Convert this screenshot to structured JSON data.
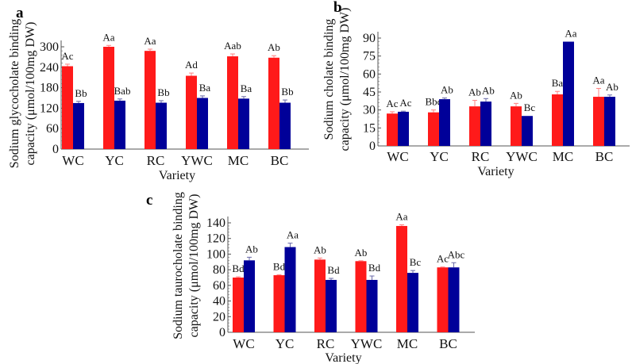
{
  "chart_data": [
    {
      "panel": "a",
      "type": "bar",
      "categories": [
        "WC",
        "YC",
        "RC",
        "YWC",
        "MC",
        "BC"
      ],
      "xlabel": "Variety",
      "ylabel": [
        "Sodium glycocholate binding",
        "capacity (μmol/100mg DW)"
      ],
      "ylim": [
        0,
        300
      ],
      "yticks": [
        0,
        60,
        120,
        180,
        240,
        300
      ],
      "series": [
        {
          "name": "red",
          "color": "#ff1a1a",
          "values": [
            243,
            300,
            288,
            215,
            272,
            268
          ],
          "errors": [
            6,
            4,
            5,
            8,
            7,
            6
          ],
          "labels": [
            "Ac",
            "Aa",
            "Aa",
            "Ad",
            "Aab",
            "Ab"
          ]
        },
        {
          "name": "blue",
          "color": "#000099",
          "values": [
            135,
            142,
            136,
            150,
            148,
            136
          ],
          "errors": [
            5,
            5,
            6,
            6,
            6,
            8
          ],
          "labels": [
            "Bb",
            "Bab",
            "Bb",
            "Ba",
            "Ba",
            "Bb"
          ]
        }
      ]
    },
    {
      "panel": "b",
      "type": "bar",
      "categories": [
        "WC",
        "YC",
        "RC",
        "YWC",
        "MC",
        "BC"
      ],
      "xlabel": "Variety",
      "ylabel": [
        "Sodium cholate binding",
        "capacity (μmol/100mg DW)"
      ],
      "ylim": [
        0,
        90
      ],
      "yticks": [
        0,
        15,
        30,
        45,
        60,
        75,
        90
      ],
      "series": [
        {
          "name": "red",
          "color": "#ff1a1a",
          "values": [
            27,
            28,
            33,
            33,
            43,
            41
          ],
          "errors": [
            1.5,
            2,
            5,
            2.5,
            2.5,
            7
          ],
          "labels": [
            "Ac",
            "Bbc",
            "Ab",
            "Ab",
            "Ba",
            "Aa"
          ]
        },
        {
          "name": "blue",
          "color": "#000099",
          "values": [
            28.5,
            39,
            37,
            25,
            87,
            41
          ],
          "errors": [
            0.5,
            1,
            2.5,
            0,
            0,
            1.5
          ],
          "labels": [
            "Ac",
            "Ab",
            "Ab",
            "Bc",
            "Aa",
            "Ab"
          ]
        }
      ]
    },
    {
      "panel": "c",
      "type": "bar",
      "categories": [
        "WC",
        "YC",
        "RC",
        "YWC",
        "MC",
        "BC"
      ],
      "xlabel": "Variety",
      "ylabel": [
        "Sodium taurocholate binding",
        "capacity (μmol/100mg DW)"
      ],
      "ylim": [
        0,
        140
      ],
      "yticks": [
        0,
        20,
        40,
        60,
        80,
        100,
        120,
        140
      ],
      "series": [
        {
          "name": "red",
          "color": "#ff1a1a",
          "values": [
            70,
            73,
            93,
            91,
            136,
            83
          ],
          "errors": [
            1,
            0.5,
            2,
            0.5,
            1.5,
            0.5
          ],
          "labels": [
            "Bd",
            "Bd",
            "Ab",
            "Ab",
            "Aa",
            "Ac"
          ]
        },
        {
          "name": "blue",
          "color": "#000099",
          "values": [
            92,
            109,
            67,
            67,
            76,
            83
          ],
          "errors": [
            4,
            5,
            2,
            5,
            3,
            6
          ],
          "labels": [
            "Ab",
            "Aa",
            "Bd",
            "Bd",
            "Bc",
            "Abc"
          ]
        }
      ]
    }
  ]
}
